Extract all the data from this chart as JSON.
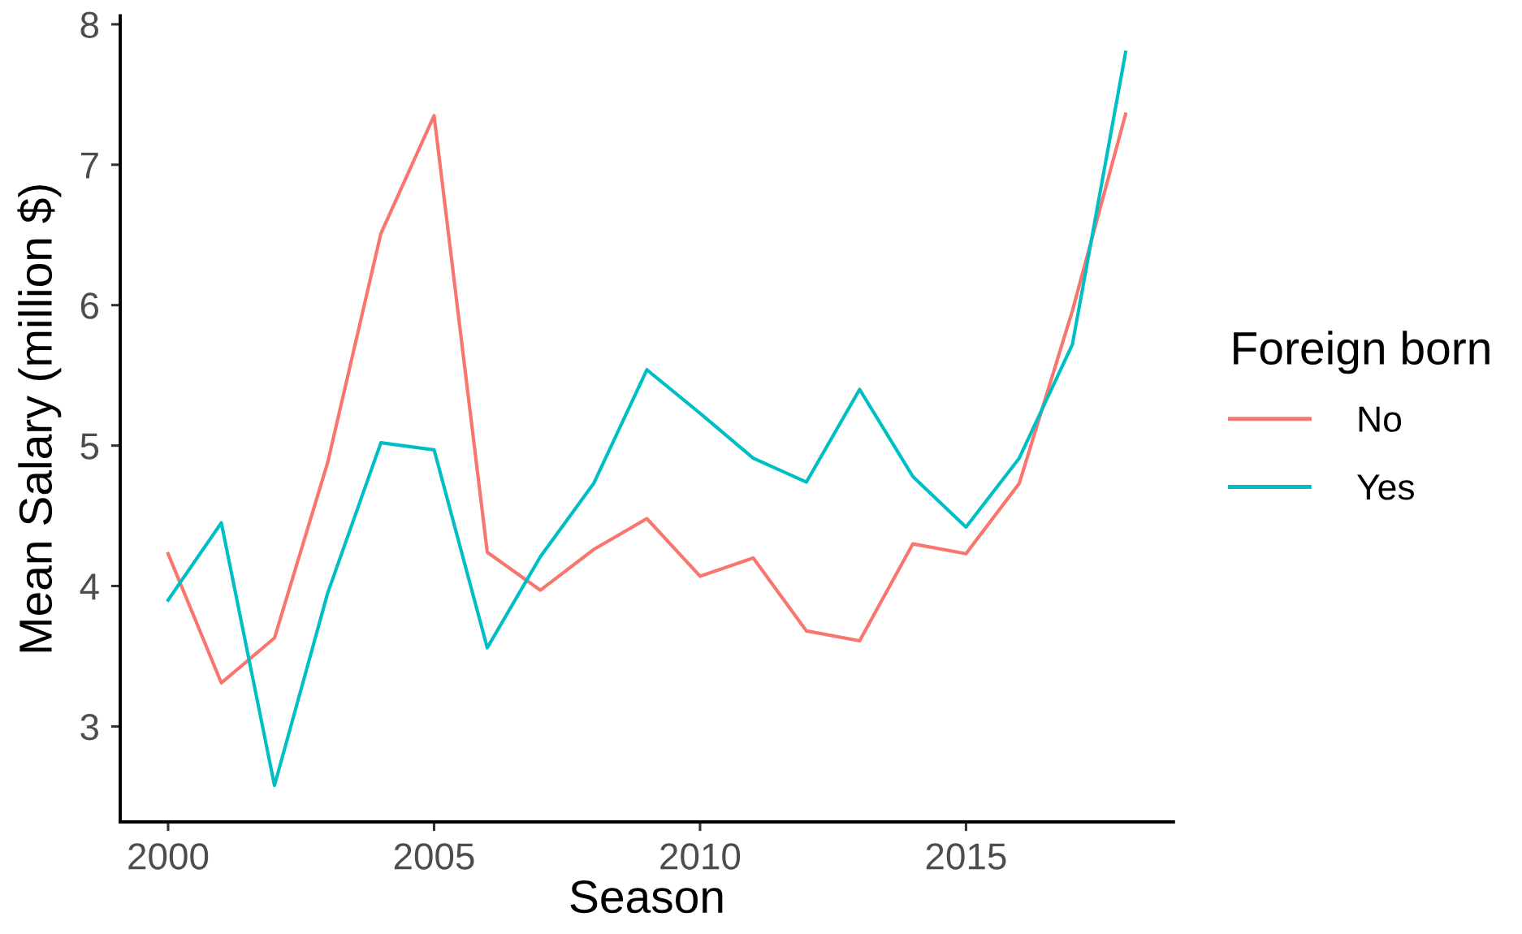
{
  "chart_data": {
    "type": "line",
    "xlabel": "Season",
    "ylabel": "Mean Salary (million $)",
    "legend_title": "Foreign born",
    "x": [
      2000,
      2001,
      2002,
      2003,
      2004,
      2005,
      2006,
      2007,
      2008,
      2009,
      2010,
      2011,
      2012,
      2013,
      2014,
      2015,
      2016,
      2017,
      2018
    ],
    "series": [
      {
        "name": "No",
        "color": "#f8766d",
        "values": [
          4.23,
          3.31,
          3.63,
          4.88,
          6.51,
          7.35,
          4.24,
          3.97,
          4.26,
          4.48,
          4.07,
          4.2,
          3.68,
          3.61,
          4.3,
          4.23,
          4.73,
          5.96,
          7.36
        ]
      },
      {
        "name": "Yes",
        "color": "#00bfc4",
        "values": [
          3.9,
          4.45,
          2.58,
          3.95,
          5.02,
          4.97,
          3.56,
          4.21,
          4.73,
          5.54,
          5.23,
          4.91,
          4.74,
          5.4,
          4.78,
          4.42,
          4.91,
          5.72,
          7.8
        ]
      }
    ],
    "xlim": [
      1999.1,
      2018.9
    ],
    "xticks": [
      2000,
      2005,
      2010,
      2015
    ],
    "ylim": [
      2.32,
      8.06
    ],
    "yticks": [
      3,
      4,
      5,
      6,
      7,
      8
    ],
    "grid": false,
    "legend": "right",
    "marker": "none",
    "line_style": "solid"
  }
}
